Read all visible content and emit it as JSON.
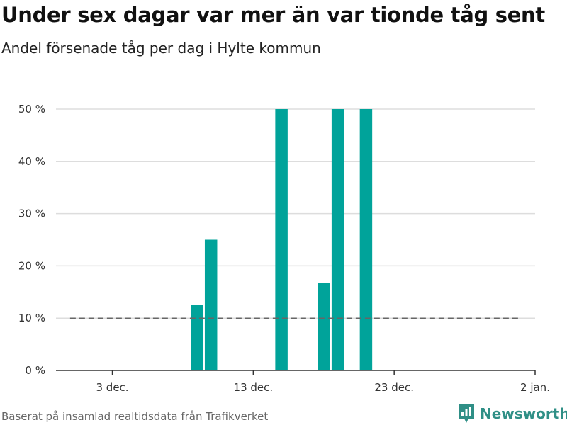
{
  "header": {
    "title": "Under sex dagar var mer än var tionde tåg sent",
    "subtitle": "Andel försenade tåg per dag i Hylte kommun"
  },
  "footer": {
    "source": "Baserat på insamlad realtidsdata från Trafikverket",
    "brand": "Newsworthy",
    "brand_icon": "newsworthy-logo-icon"
  },
  "colors": {
    "bar": "#00a39a",
    "grid": "#dddddd",
    "axis": "#333333",
    "reference_line": "#666666",
    "brand": "#2f8f86"
  },
  "chart_data": {
    "type": "bar",
    "title": "Under sex dagar var mer än var tionde tåg sent",
    "subtitle": "Andel försenade tåg per dag i Hylte kommun",
    "xlabel": "",
    "ylabel": "",
    "x_unit": "date",
    "xlim": [
      "2019-11-29",
      "2020-01-02"
    ],
    "ylim": [
      0,
      50
    ],
    "y_ticks": [
      0,
      10,
      20,
      30,
      40,
      50
    ],
    "y_tick_labels": [
      "0 %",
      "10 %",
      "20 %",
      "30 %",
      "40 %",
      "50 %"
    ],
    "x_ticks": [
      "2019-12-03",
      "2019-12-13",
      "2019-12-23",
      "2020-01-02"
    ],
    "x_tick_labels": [
      "3 dec.",
      "13 dec.",
      "23 dec.",
      "2 jan."
    ],
    "grid": true,
    "categories": [
      "2019-12-09",
      "2019-12-10",
      "2019-12-15",
      "2019-12-18",
      "2019-12-19",
      "2019-12-21"
    ],
    "values": [
      12.5,
      25,
      50,
      16.7,
      50,
      50
    ],
    "reference_line": {
      "value": 10,
      "style": "dashed",
      "from": "2019-11-30",
      "to": "2020-01-01"
    }
  }
}
